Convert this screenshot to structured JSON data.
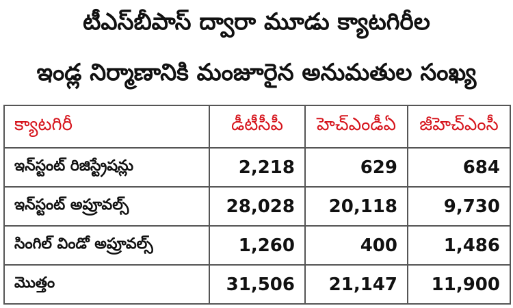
{
  "title": {
    "line1": "టీఎస్‌బీపాస్ ద్వారా మూడు క్యాటగిరీల",
    "line2": "ఇండ్ల నిర్మాణానికి మంజూరైన అనుమతుల సంఖ్య"
  },
  "table": {
    "headers": [
      "క్యాటగిరీ",
      "డీటీసీపీ",
      "హెచ్ఎండీఏ",
      "జీహెచ్ఎంసీ"
    ],
    "rows": [
      {
        "category": "ఇన్‌స్టంట్ రిజిస్ట్రేషన్లు",
        "dtcp": "2,218",
        "hmda": "629",
        "ghmc": "684"
      },
      {
        "category": "ఇన్‌స్టంట్ అప్రూవల్స్",
        "dtcp": "28,028",
        "hmda": "20,118",
        "ghmc": "9,730"
      },
      {
        "category": "సింగిల్ విండో అప్రూవల్స్",
        "dtcp": "1,260",
        "hmda": "400",
        "ghmc": "1,486"
      },
      {
        "category": "మొత్తం",
        "dtcp": "31,506",
        "hmda": "21,147",
        "ghmc": "11,900"
      }
    ]
  },
  "colors": {
    "header_text": "#d6141c",
    "border": "#555555"
  }
}
